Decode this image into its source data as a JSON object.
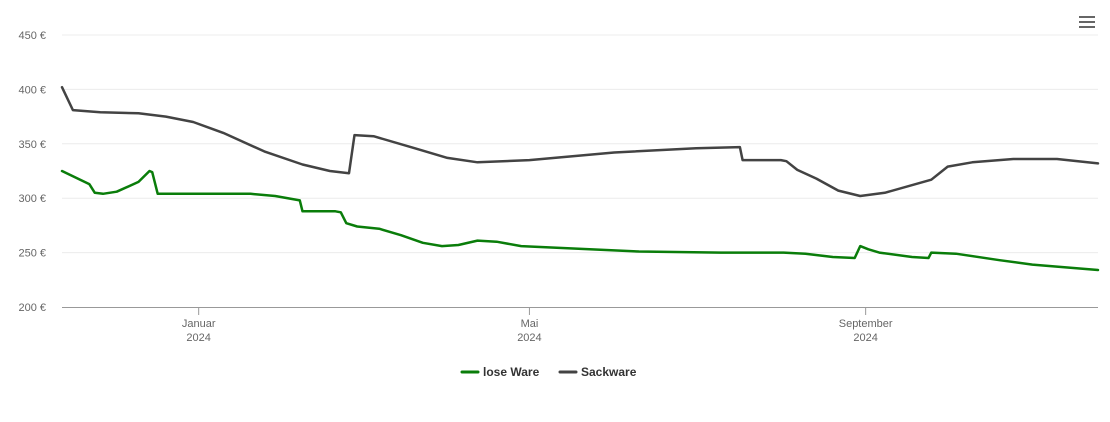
{
  "chart_data": {
    "type": "line",
    "title": "",
    "xlabel": "",
    "ylabel": "",
    "ylim": [
      200,
      450
    ],
    "yticks": [
      200,
      250,
      300,
      350,
      400,
      450
    ],
    "y_tick_suffix": " €",
    "x_range": [
      "2023-11-12",
      "2024-11-25"
    ],
    "x_ticks": [
      {
        "date": "2024-01-01",
        "label": "Januar",
        "year": "2024"
      },
      {
        "date": "2024-05-01",
        "label": "Mai",
        "year": "2024"
      },
      {
        "date": "2024-09-01",
        "label": "September",
        "year": "2024"
      }
    ],
    "grid": true,
    "legend_position": "bottom-center",
    "series": [
      {
        "name": "lose Ware",
        "color": "#0a7d0a",
        "points": [
          [
            "2023-11-12",
            325
          ],
          [
            "2023-11-22",
            313
          ],
          [
            "2023-11-24",
            305
          ],
          [
            "2023-11-27",
            304
          ],
          [
            "2023-12-02",
            306
          ],
          [
            "2023-12-10",
            315
          ],
          [
            "2023-12-14",
            325
          ],
          [
            "2023-12-15",
            324
          ],
          [
            "2023-12-17",
            304
          ],
          [
            "2024-01-20",
            304
          ],
          [
            "2024-01-29",
            302
          ],
          [
            "2024-02-07",
            298
          ],
          [
            "2024-02-08",
            288
          ],
          [
            "2024-02-20",
            288
          ],
          [
            "2024-02-22",
            287
          ],
          [
            "2024-02-24",
            277
          ],
          [
            "2024-02-28",
            274
          ],
          [
            "2024-03-07",
            272
          ],
          [
            "2024-03-15",
            266
          ],
          [
            "2024-03-23",
            259
          ],
          [
            "2024-03-30",
            256
          ],
          [
            "2024-04-05",
            257
          ],
          [
            "2024-04-12",
            261
          ],
          [
            "2024-04-19",
            260
          ],
          [
            "2024-04-28",
            256
          ],
          [
            "2024-05-15",
            254
          ],
          [
            "2024-06-10",
            251
          ],
          [
            "2024-07-10",
            250
          ],
          [
            "2024-08-02",
            250
          ],
          [
            "2024-08-10",
            249
          ],
          [
            "2024-08-20",
            246
          ],
          [
            "2024-08-28",
            245
          ],
          [
            "2024-08-30",
            256
          ],
          [
            "2024-09-02",
            253
          ],
          [
            "2024-09-06",
            250
          ],
          [
            "2024-09-18",
            246
          ],
          [
            "2024-09-24",
            245
          ],
          [
            "2024-09-25",
            250
          ],
          [
            "2024-10-04",
            249
          ],
          [
            "2024-10-20",
            243
          ],
          [
            "2024-11-01",
            239
          ],
          [
            "2024-11-25",
            234
          ]
        ]
      },
      {
        "name": "Sackware",
        "color": "#434343",
        "points": [
          [
            "2023-11-12",
            402
          ],
          [
            "2023-11-16",
            381
          ],
          [
            "2023-11-26",
            379
          ],
          [
            "2023-12-10",
            378
          ],
          [
            "2023-12-20",
            375
          ],
          [
            "2023-12-30",
            370
          ],
          [
            "2024-01-10",
            360
          ],
          [
            "2024-01-25",
            343
          ],
          [
            "2024-02-08",
            331
          ],
          [
            "2024-02-18",
            325
          ],
          [
            "2024-02-25",
            323
          ],
          [
            "2024-02-27",
            358
          ],
          [
            "2024-03-05",
            357
          ],
          [
            "2024-03-20",
            346
          ],
          [
            "2024-04-01",
            337
          ],
          [
            "2024-04-12",
            333
          ],
          [
            "2024-05-01",
            335
          ],
          [
            "2024-06-01",
            342
          ],
          [
            "2024-07-01",
            346
          ],
          [
            "2024-07-17",
            347
          ],
          [
            "2024-07-18",
            335
          ],
          [
            "2024-08-01",
            335
          ],
          [
            "2024-08-03",
            334
          ],
          [
            "2024-08-07",
            326
          ],
          [
            "2024-08-14",
            318
          ],
          [
            "2024-08-22",
            307
          ],
          [
            "2024-08-30",
            302
          ],
          [
            "2024-09-08",
            305
          ],
          [
            "2024-09-25",
            317
          ],
          [
            "2024-10-01",
            329
          ],
          [
            "2024-10-10",
            333
          ],
          [
            "2024-10-25",
            336
          ],
          [
            "2024-11-10",
            336
          ],
          [
            "2024-11-25",
            332
          ]
        ]
      }
    ]
  },
  "menu": {
    "icon": "hamburger-menu-icon"
  }
}
